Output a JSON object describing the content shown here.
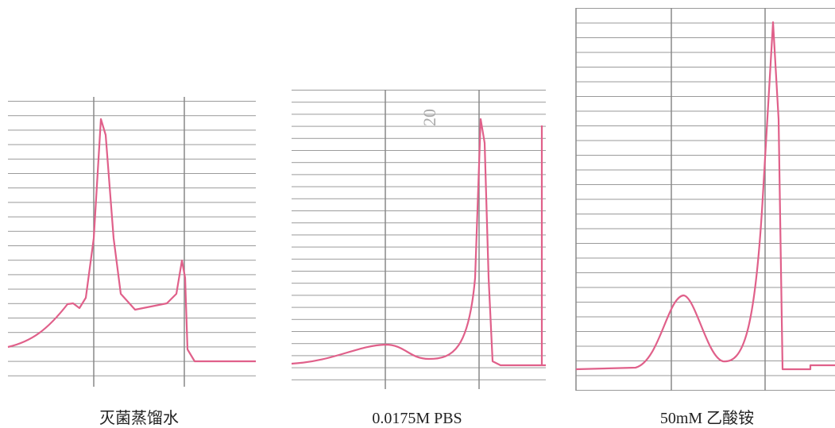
{
  "panels": [
    {
      "caption": "灭菌蒸馏水"
    },
    {
      "caption": "0.0175M PBS",
      "annotation": "20"
    },
    {
      "caption": "50mM 乙酸铵"
    }
  ]
}
